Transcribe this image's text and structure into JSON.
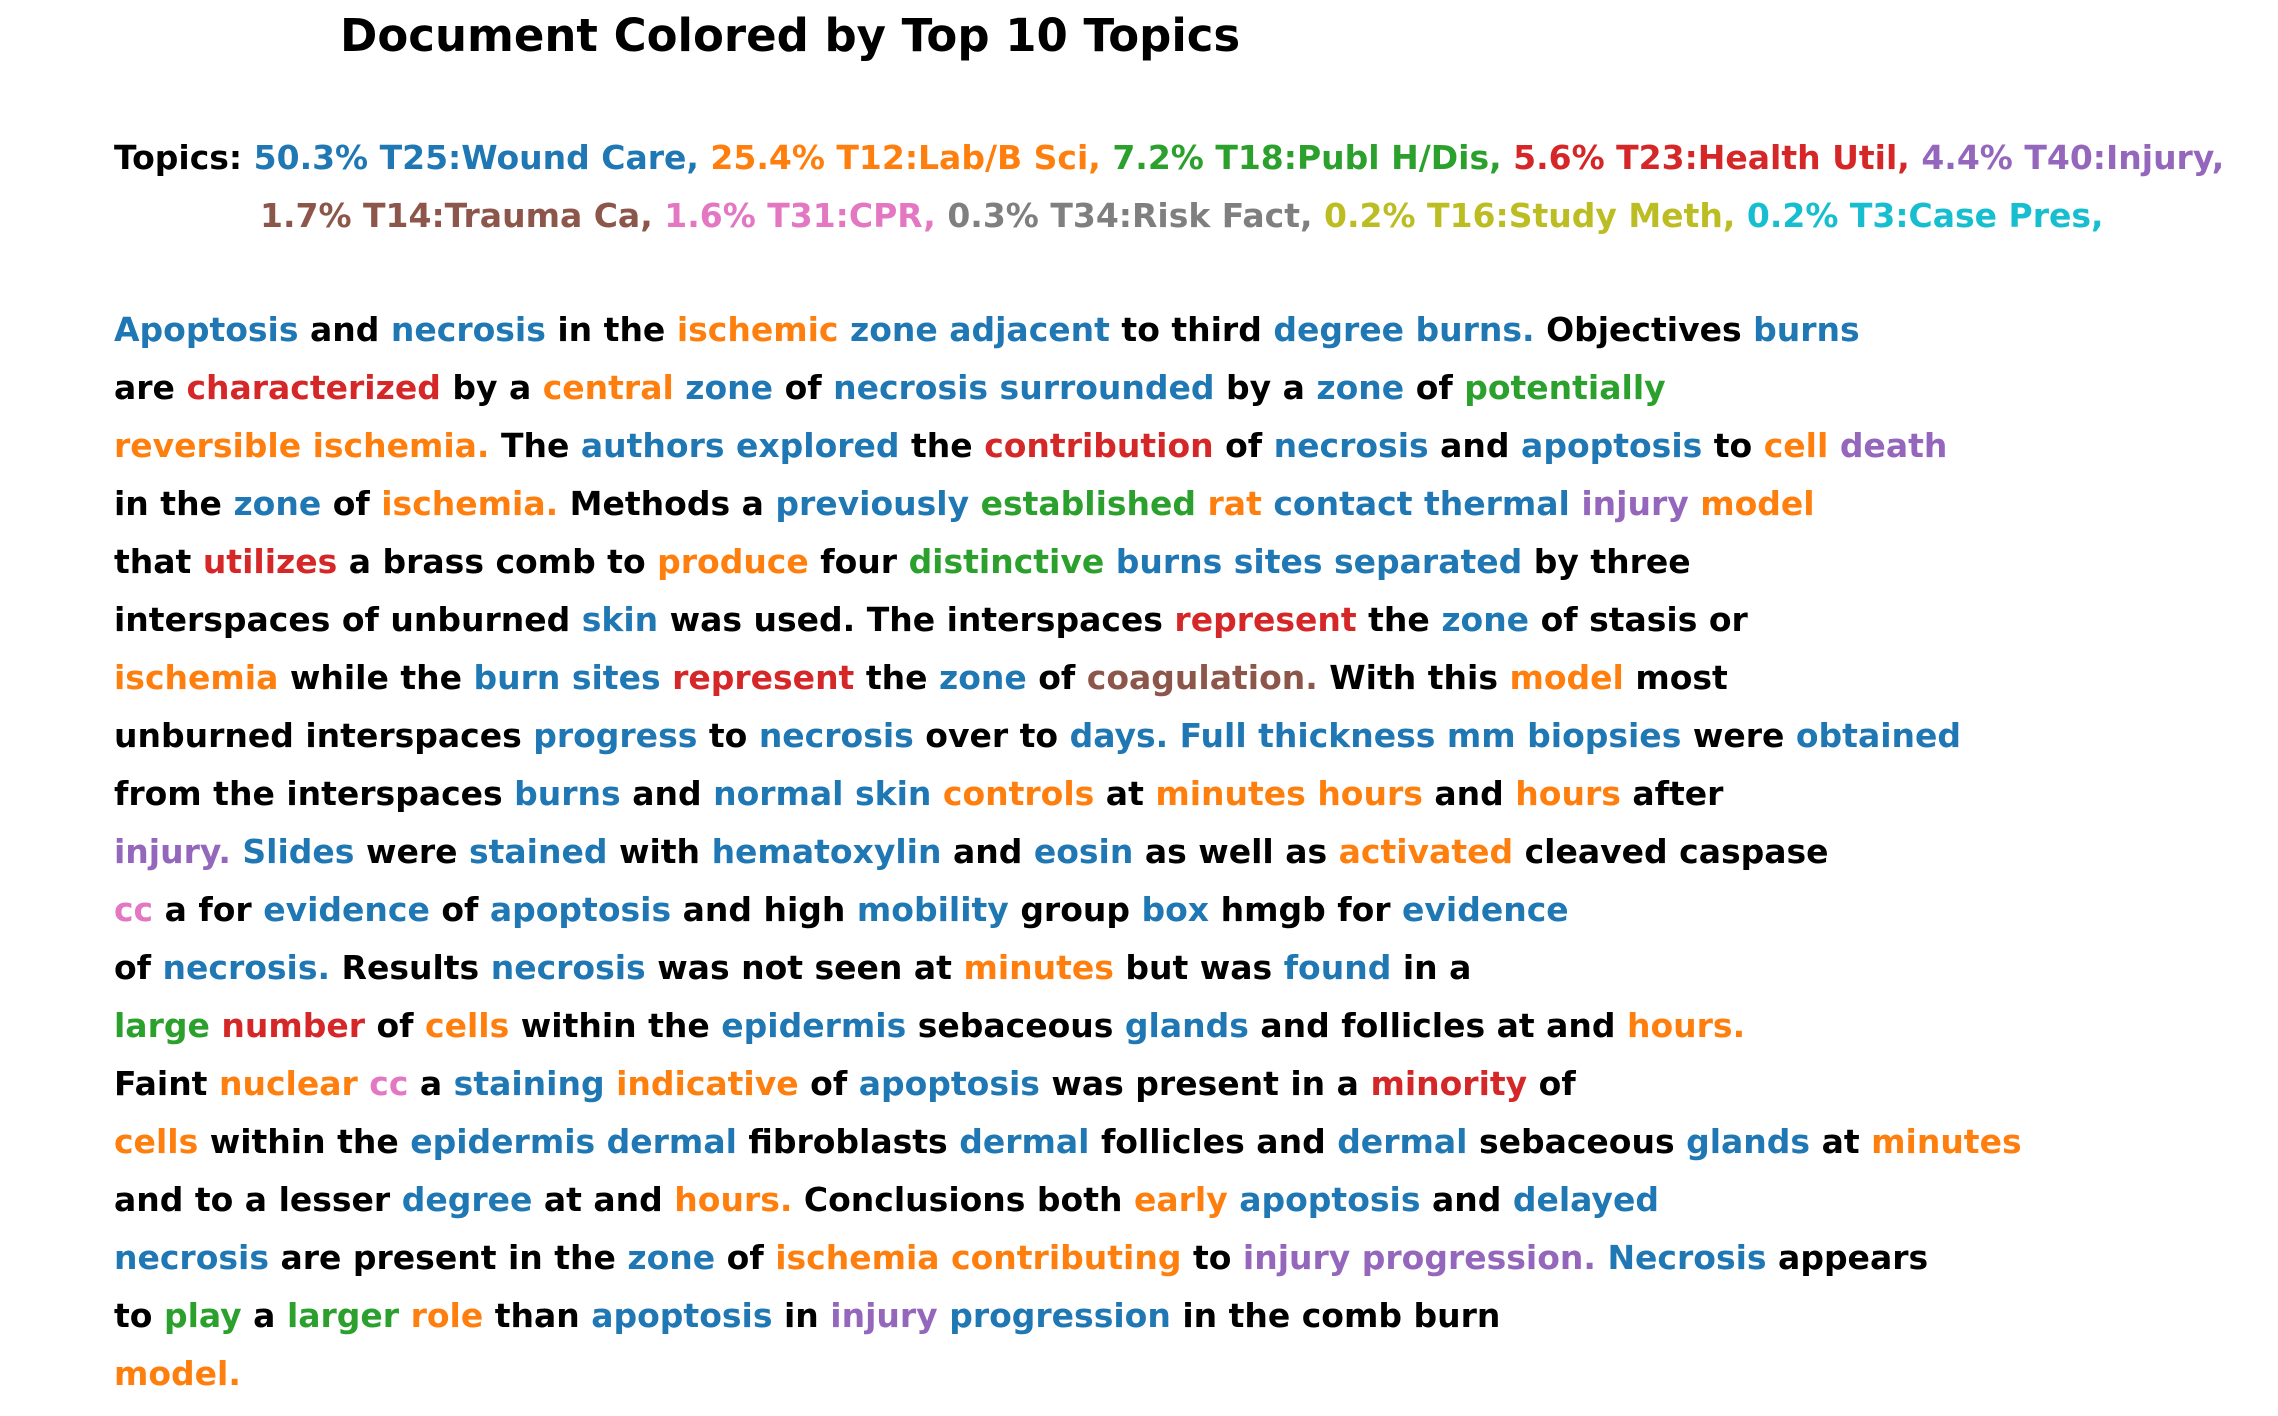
{
  "title": "Document Colored by Top 10 Topics",
  "topics": {
    "label": "Topics:",
    "items": [
      {
        "pct": "50.3%",
        "code": "T25",
        "name": "Wound Care",
        "color": "#1f77b4"
      },
      {
        "pct": "25.4%",
        "code": "T12",
        "name": "Lab/B Sci",
        "color": "#ff7f0e"
      },
      {
        "pct": "7.2%",
        "code": "T18",
        "name": "Publ H/Dis",
        "color": "#2ca02c"
      },
      {
        "pct": "5.6%",
        "code": "T23",
        "name": "Health Util",
        "color": "#d62728"
      },
      {
        "pct": "4.4%",
        "code": "T40",
        "name": "Injury",
        "color": "#9467bd"
      },
      {
        "pct": "1.7%",
        "code": "T14",
        "name": "Trauma Ca",
        "color": "#8c564b"
      },
      {
        "pct": "1.6%",
        "code": "T31",
        "name": "CPR",
        "color": "#e377c2"
      },
      {
        "pct": "0.3%",
        "code": "T34",
        "name": "Risk Fact",
        "color": "#7f7f7f"
      },
      {
        "pct": "0.2%",
        "code": "T16",
        "name": "Study Meth",
        "color": "#bcbd22"
      },
      {
        "pct": "0.2%",
        "code": "T3",
        "name": "Case Pres",
        "color": "#17becf"
      }
    ],
    "line_breaks_after": [
      5
    ]
  },
  "palette": {
    "k": "#000000",
    "b": "#1f77b4",
    "o": "#ff7f0e",
    "g": "#2ca02c",
    "r": "#d62728",
    "p": "#9467bd",
    "n": "#8c564b",
    "m": "#e377c2"
  },
  "document_lines": [
    [
      [
        "Apoptosis",
        "b"
      ],
      [
        "and",
        "k"
      ],
      [
        "necrosis",
        "b"
      ],
      [
        "in the",
        "k"
      ],
      [
        "ischemic",
        "o"
      ],
      [
        "zone adjacent",
        "b"
      ],
      [
        "to third",
        "k"
      ],
      [
        "degree burns.",
        "b"
      ],
      [
        "Objectives",
        "k"
      ],
      [
        "burns",
        "b"
      ]
    ],
    [
      [
        "are",
        "k"
      ],
      [
        "characterized",
        "r"
      ],
      [
        "by a",
        "k"
      ],
      [
        "central",
        "o"
      ],
      [
        "zone",
        "b"
      ],
      [
        "of",
        "k"
      ],
      [
        "necrosis surrounded",
        "b"
      ],
      [
        "by a",
        "k"
      ],
      [
        "zone",
        "b"
      ],
      [
        "of",
        "k"
      ],
      [
        "potentially",
        "g"
      ]
    ],
    [
      [
        "reversible ischemia.",
        "o"
      ],
      [
        "The",
        "k"
      ],
      [
        "authors explored",
        "b"
      ],
      [
        "the",
        "k"
      ],
      [
        "contribution",
        "r"
      ],
      [
        "of",
        "k"
      ],
      [
        "necrosis",
        "b"
      ],
      [
        "and",
        "k"
      ],
      [
        "apoptosis",
        "b"
      ],
      [
        "to",
        "k"
      ],
      [
        "cell",
        "o"
      ],
      [
        "death",
        "p"
      ]
    ],
    [
      [
        "in the",
        "k"
      ],
      [
        "zone",
        "b"
      ],
      [
        "of",
        "k"
      ],
      [
        "ischemia.",
        "o"
      ],
      [
        "Methods a",
        "k"
      ],
      [
        "previously",
        "b"
      ],
      [
        "established",
        "g"
      ],
      [
        "rat",
        "o"
      ],
      [
        "contact thermal",
        "b"
      ],
      [
        "injury",
        "p"
      ],
      [
        "model",
        "o"
      ]
    ],
    [
      [
        "that",
        "k"
      ],
      [
        "utilizes",
        "r"
      ],
      [
        "a brass comb to",
        "k"
      ],
      [
        "produce",
        "o"
      ],
      [
        "four",
        "k"
      ],
      [
        "distinctive",
        "g"
      ],
      [
        "burns sites separated",
        "b"
      ],
      [
        "by three",
        "k"
      ]
    ],
    [
      [
        "interspaces of unburned",
        "k"
      ],
      [
        "skin",
        "b"
      ],
      [
        "was used. The interspaces",
        "k"
      ],
      [
        "represent",
        "r"
      ],
      [
        "the",
        "k"
      ],
      [
        "zone",
        "b"
      ],
      [
        "of stasis or",
        "k"
      ]
    ],
    [
      [
        "ischemia",
        "o"
      ],
      [
        "while the",
        "k"
      ],
      [
        "burn sites",
        "b"
      ],
      [
        "represent",
        "r"
      ],
      [
        "the",
        "k"
      ],
      [
        "zone",
        "b"
      ],
      [
        "of",
        "k"
      ],
      [
        "coagulation.",
        "n"
      ],
      [
        "With this",
        "k"
      ],
      [
        "model",
        "o"
      ],
      [
        "most",
        "k"
      ]
    ],
    [
      [
        "unburned interspaces",
        "k"
      ],
      [
        "progress",
        "b"
      ],
      [
        "to",
        "k"
      ],
      [
        "necrosis",
        "b"
      ],
      [
        "over to",
        "k"
      ],
      [
        "days. Full thickness mm biopsies",
        "b"
      ],
      [
        "were",
        "k"
      ],
      [
        "obtained",
        "b"
      ]
    ],
    [
      [
        "from the interspaces",
        "k"
      ],
      [
        "burns",
        "b"
      ],
      [
        "and",
        "k"
      ],
      [
        "normal skin",
        "b"
      ],
      [
        "controls",
        "o"
      ],
      [
        "at",
        "k"
      ],
      [
        "minutes hours",
        "o"
      ],
      [
        "and",
        "k"
      ],
      [
        "hours",
        "o"
      ],
      [
        "after",
        "k"
      ]
    ],
    [
      [
        "injury.",
        "p"
      ],
      [
        "Slides",
        "b"
      ],
      [
        "were",
        "k"
      ],
      [
        "stained",
        "b"
      ],
      [
        "with",
        "k"
      ],
      [
        "hematoxylin",
        "b"
      ],
      [
        "and",
        "k"
      ],
      [
        "eosin",
        "b"
      ],
      [
        "as well as",
        "k"
      ],
      [
        "activated",
        "o"
      ],
      [
        "cleaved caspase",
        "k"
      ]
    ],
    [
      [
        "cc",
        "m"
      ],
      [
        "a for",
        "k"
      ],
      [
        "evidence",
        "b"
      ],
      [
        "of",
        "k"
      ],
      [
        "apoptosis",
        "b"
      ],
      [
        "and high",
        "k"
      ],
      [
        "mobility",
        "b"
      ],
      [
        "group",
        "k"
      ],
      [
        "box",
        "b"
      ],
      [
        "hmgb for",
        "k"
      ],
      [
        "evidence",
        "b"
      ]
    ],
    [
      [
        "of",
        "k"
      ],
      [
        "necrosis.",
        "b"
      ],
      [
        "Results",
        "k"
      ],
      [
        "necrosis",
        "b"
      ],
      [
        "was not seen at",
        "k"
      ],
      [
        "minutes",
        "o"
      ],
      [
        "but was",
        "k"
      ],
      [
        "found",
        "b"
      ],
      [
        "in a",
        "k"
      ]
    ],
    [
      [
        "large",
        "g"
      ],
      [
        "number",
        "r"
      ],
      [
        "of",
        "k"
      ],
      [
        "cells",
        "o"
      ],
      [
        "within the",
        "k"
      ],
      [
        "epidermis",
        "b"
      ],
      [
        "sebaceous",
        "k"
      ],
      [
        "glands",
        "b"
      ],
      [
        "and follicles at and",
        "k"
      ],
      [
        "hours.",
        "o"
      ]
    ],
    [
      [
        "Faint",
        "k"
      ],
      [
        "nuclear",
        "o"
      ],
      [
        "cc",
        "m"
      ],
      [
        "a",
        "k"
      ],
      [
        "staining",
        "b"
      ],
      [
        "indicative",
        "o"
      ],
      [
        "of",
        "k"
      ],
      [
        "apoptosis",
        "b"
      ],
      [
        "was present in a",
        "k"
      ],
      [
        "minority",
        "r"
      ],
      [
        "of",
        "k"
      ]
    ],
    [
      [
        "cells",
        "o"
      ],
      [
        "within the",
        "k"
      ],
      [
        "epidermis dermal",
        "b"
      ],
      [
        "fibroblasts",
        "k"
      ],
      [
        "dermal",
        "b"
      ],
      [
        "follicles and",
        "k"
      ],
      [
        "dermal",
        "b"
      ],
      [
        "sebaceous",
        "k"
      ],
      [
        "glands",
        "b"
      ],
      [
        "at",
        "k"
      ],
      [
        "minutes",
        "o"
      ]
    ],
    [
      [
        "and to a lesser",
        "k"
      ],
      [
        "degree",
        "b"
      ],
      [
        "at and",
        "k"
      ],
      [
        "hours.",
        "o"
      ],
      [
        "Conclusions both",
        "k"
      ],
      [
        "early",
        "o"
      ],
      [
        "apoptosis",
        "b"
      ],
      [
        "and",
        "k"
      ],
      [
        "delayed",
        "b"
      ]
    ],
    [
      [
        "necrosis",
        "b"
      ],
      [
        "are present in the",
        "k"
      ],
      [
        "zone",
        "b"
      ],
      [
        "of",
        "k"
      ],
      [
        "ischemia contributing",
        "o"
      ],
      [
        "to",
        "k"
      ],
      [
        "injury progression.",
        "p"
      ],
      [
        "Necrosis",
        "b"
      ],
      [
        "appears",
        "k"
      ]
    ],
    [
      [
        "to",
        "k"
      ],
      [
        "play",
        "g"
      ],
      [
        "a",
        "k"
      ],
      [
        "larger",
        "g"
      ],
      [
        "role",
        "o"
      ],
      [
        "than",
        "k"
      ],
      [
        "apoptosis",
        "b"
      ],
      [
        "in",
        "k"
      ],
      [
        "injury",
        "p"
      ],
      [
        "progression",
        "b"
      ],
      [
        "in the comb burn",
        "k"
      ]
    ],
    [
      [
        "model.",
        "o"
      ]
    ]
  ]
}
